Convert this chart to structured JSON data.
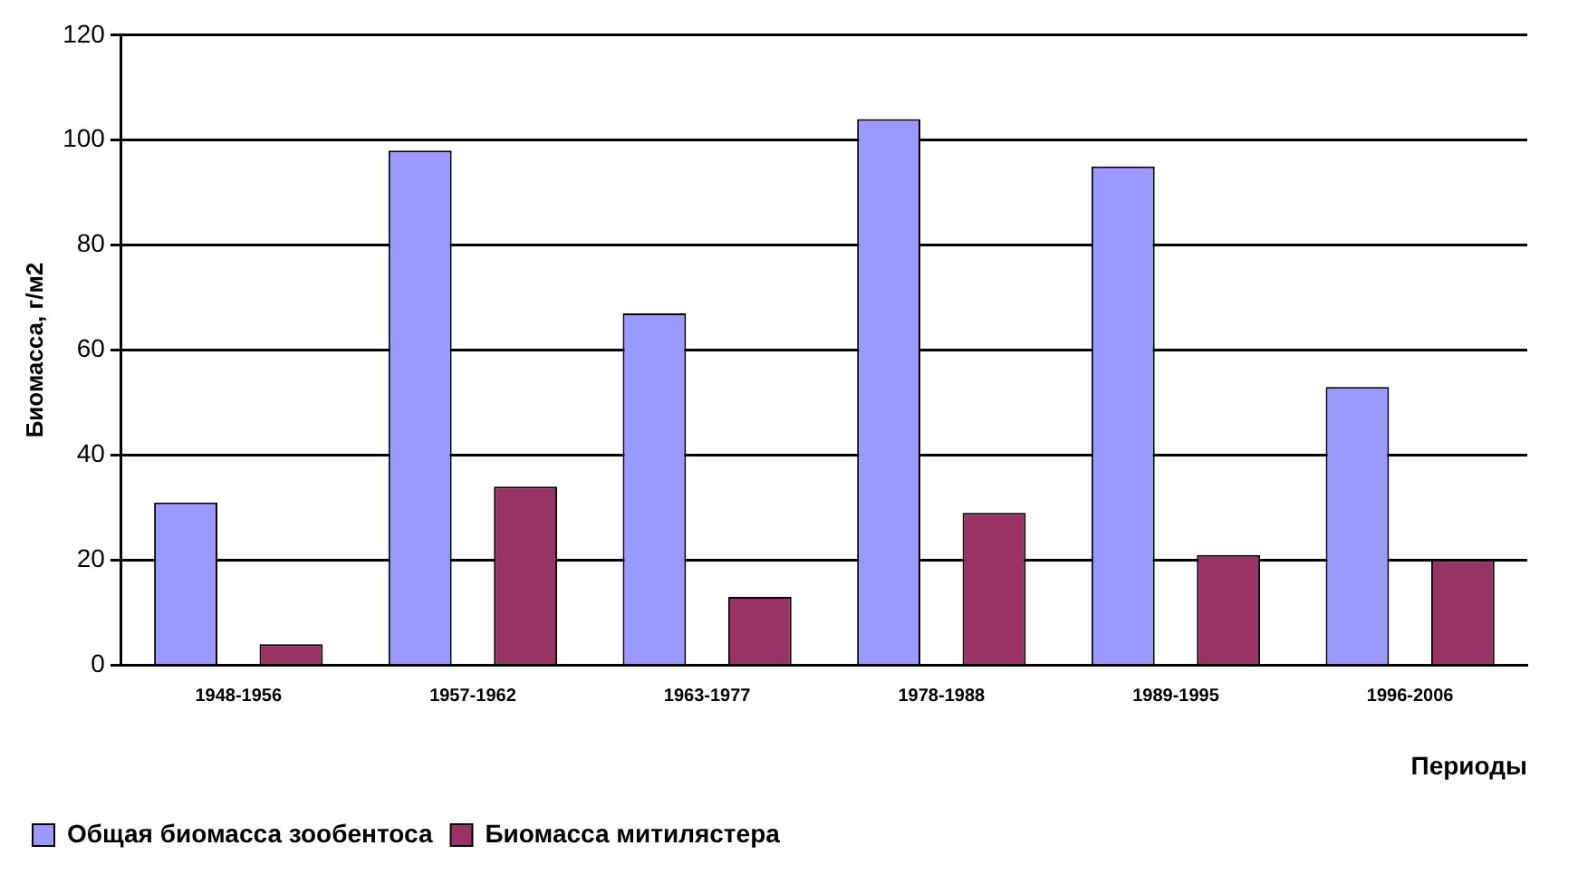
{
  "chart_data": {
    "type": "bar",
    "xlabel": "Периоды",
    "ylabel": "Биомасса, г/м2",
    "categories": [
      "1948-1956",
      "1957-1962",
      "1963-1977",
      "1978-1988",
      "1989-1995",
      "1996-2006"
    ],
    "series": [
      {
        "name": "Общая биомасса зообентоса",
        "color": "#9999ff",
        "values": [
          31,
          98,
          67,
          104,
          95,
          53
        ]
      },
      {
        "name": "Биомасса митилястера",
        "color": "#993366",
        "values": [
          4,
          34,
          13,
          29,
          21,
          20
        ]
      }
    ],
    "ylim": [
      0,
      120
    ],
    "yticks": [
      0,
      20,
      40,
      60,
      80,
      100,
      120
    ],
    "grid": "y",
    "legend": "bottom"
  }
}
